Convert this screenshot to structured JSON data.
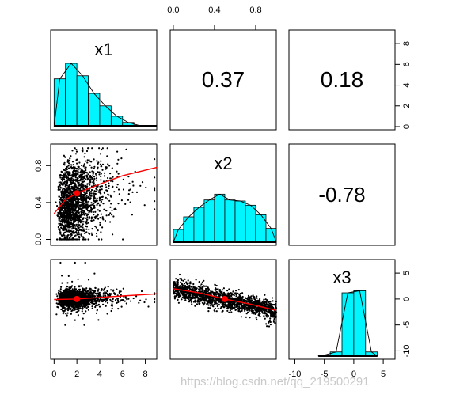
{
  "chart_data": {
    "type": "scatter_matrix",
    "title": "",
    "variables": [
      "x1",
      "x2",
      "x3"
    ],
    "correlations": [
      {
        "row": 1,
        "col": 2,
        "label": "0.37",
        "value": 0.37
      },
      {
        "row": 1,
        "col": 3,
        "label": "0.18",
        "value": 0.18
      },
      {
        "row": 2,
        "col": 3,
        "label": "-0.78",
        "value": -0.78
      }
    ],
    "axes": {
      "x1": {
        "range": [
          -0.3,
          9
        ],
        "ticks": [
          0,
          2,
          4,
          6,
          8
        ],
        "tick_labels": [
          "0",
          "2",
          "4",
          "6",
          "8"
        ]
      },
      "x2": {
        "range": [
          -0.03,
          1.0
        ],
        "ticks": [
          0.0,
          0.4,
          0.8
        ],
        "tick_labels": [
          "0.0",
          "0.4",
          "0.8"
        ]
      },
      "x3": {
        "range": [
          -11,
          7
        ],
        "ticks": [
          -10,
          -5,
          0,
          5
        ],
        "tick_labels": [
          "-10",
          "-5",
          "0",
          "5"
        ]
      },
      "x2_left": {
        "ticks": [
          0.0,
          0.4,
          0.8
        ],
        "tick_labels": [
          "0.0",
          "0.4",
          "0.8"
        ]
      },
      "x3_right": {
        "ticks": [
          5,
          0,
          -5,
          -10
        ],
        "tick_labels": [
          "5",
          "0",
          "-5",
          "-10"
        ]
      },
      "density_right": {
        "ticks": [
          0,
          2,
          4,
          6,
          8
        ],
        "tick_labels": [
          "0",
          "2",
          "4",
          "6",
          "8"
        ],
        "ylim": [
          0,
          9
        ]
      }
    },
    "histograms": {
      "x1": {
        "edges": [
          0,
          1,
          2,
          3,
          4,
          5,
          6,
          7,
          8,
          9
        ],
        "counts": [
          4.6,
          6.1,
          4.9,
          3.2,
          2.0,
          1.0,
          0.4,
          0.1,
          0.05
        ]
      },
      "x2": {
        "edges": [
          0,
          0.1,
          0.2,
          0.3,
          0.4,
          0.5,
          0.6,
          0.7,
          0.8,
          0.9,
          1.0
        ],
        "counts": [
          1.2,
          2.4,
          3.3,
          4.0,
          4.55,
          4.0,
          3.9,
          3.5,
          2.6,
          1.3
        ]
      },
      "x3": {
        "edges": [
          -6,
          -4,
          -2,
          0,
          2,
          4
        ],
        "counts": [
          0.1,
          0.4,
          6.1,
          6.3,
          0.4
        ]
      }
    },
    "scatter_panels": [
      {
        "x": "x1",
        "y": "x2",
        "n_points": 1800,
        "loess": [
          [
            0,
            0.28
          ],
          [
            1,
            0.43
          ],
          [
            2,
            0.5
          ],
          [
            4,
            0.6
          ],
          [
            6,
            0.69
          ],
          [
            9,
            0.78
          ]
        ],
        "mean": [
          2,
          0.5
        ]
      },
      {
        "x": "x1",
        "y": "x3",
        "n_points": 1600,
        "loess": [
          [
            0,
            -0.1
          ],
          [
            2,
            0
          ],
          [
            4,
            0.3
          ],
          [
            6,
            0.6
          ],
          [
            9,
            1.0
          ]
        ],
        "mean": [
          2,
          0
        ]
      },
      {
        "x": "x2",
        "y": "x3",
        "n_points": 1600,
        "loess": [
          [
            0,
            2.0
          ],
          [
            0.25,
            1.2
          ],
          [
            0.5,
            0
          ],
          [
            0.75,
            -1.0
          ],
          [
            1.0,
            -2.2
          ]
        ],
        "mean": [
          0.5,
          0
        ]
      }
    ]
  },
  "watermark": "https://blog.csdn.net/qq_219500291",
  "colors": {
    "bar_fill": "#00F5FF",
    "fit_line": "#ff0000",
    "points": "#000000"
  }
}
